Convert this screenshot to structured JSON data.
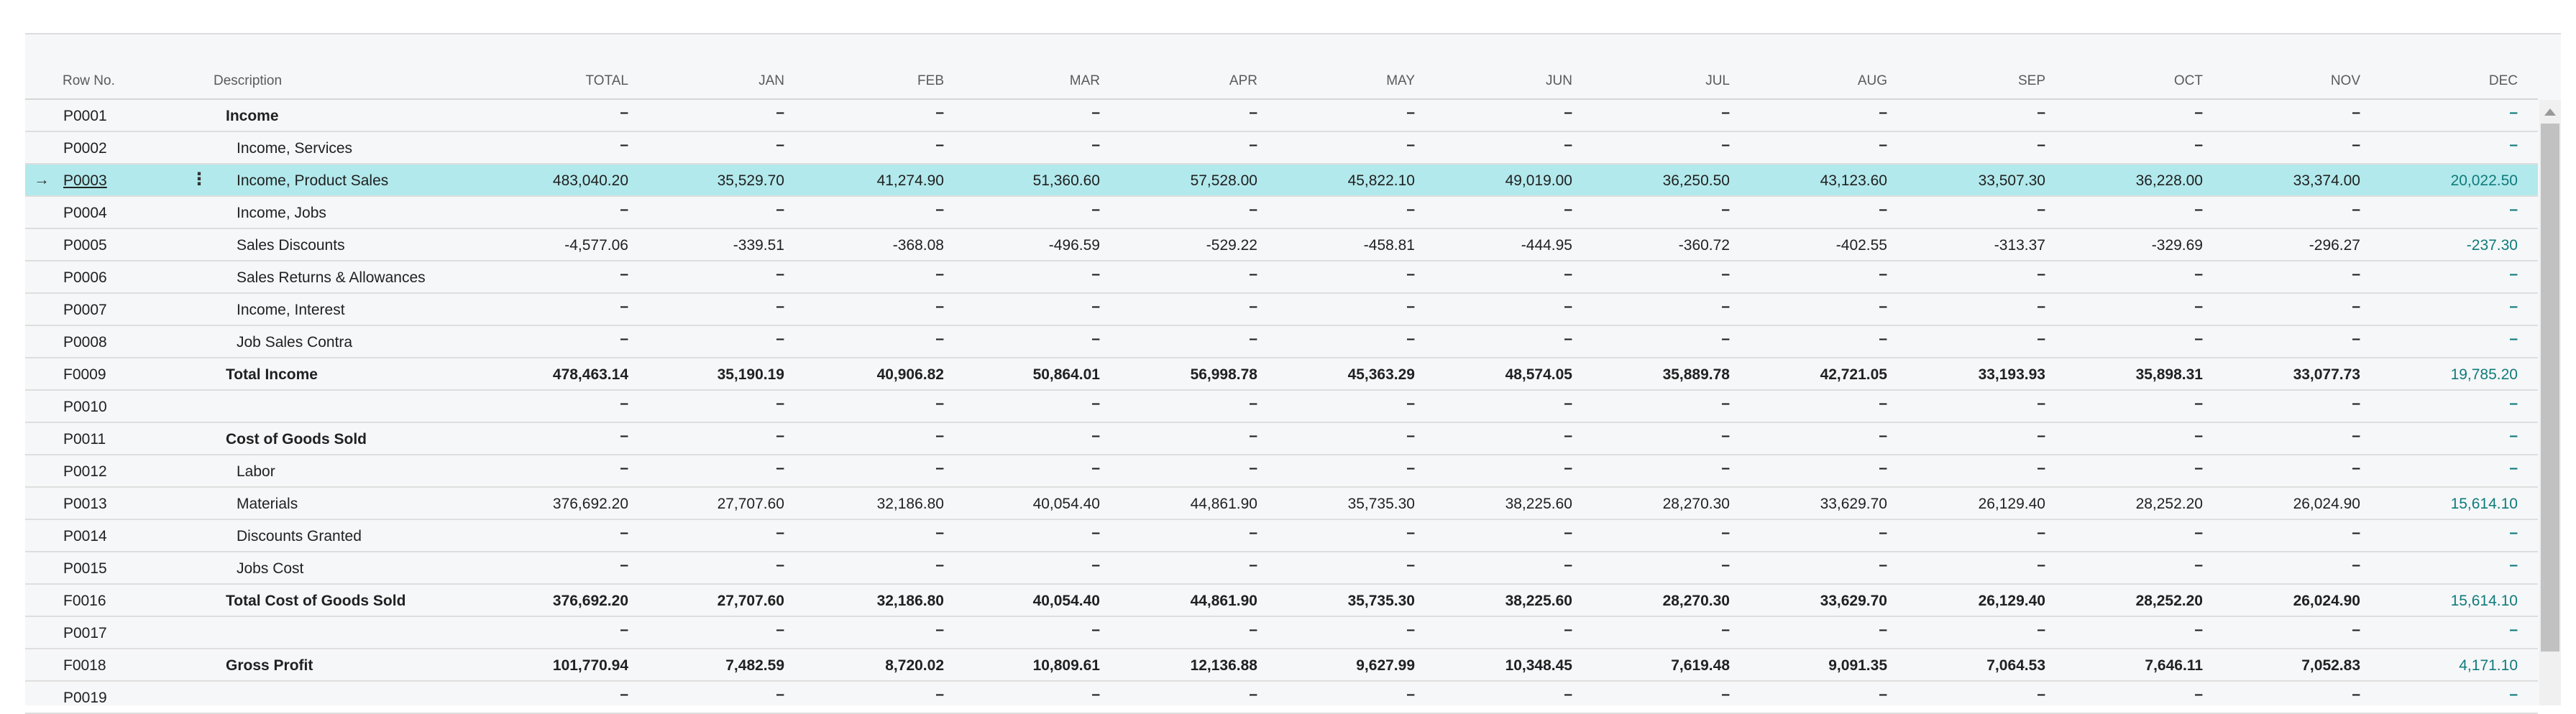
{
  "columns": {
    "row_no": "Row No.",
    "description": "Description",
    "amounts": [
      "TOTAL",
      "JAN",
      "FEB",
      "MAR",
      "APR",
      "MAY",
      "JUN",
      "JUL",
      "AUG",
      "SEP",
      "OCT",
      "NOV",
      "DEC"
    ]
  },
  "colors": {
    "selected_row": "#b2e9ec",
    "dec_column": "#0f7b7b",
    "background": "#f6f7f9"
  },
  "selected_row_index": 2,
  "rows": [
    {
      "row_no": "P0001",
      "description": "Income",
      "style": "heading",
      "values": [
        "–",
        "–",
        "–",
        "–",
        "–",
        "–",
        "–",
        "–",
        "–",
        "–",
        "–",
        "–",
        "–"
      ]
    },
    {
      "row_no": "P0002",
      "description": "Income, Services",
      "style": "indent",
      "values": [
        "–",
        "–",
        "–",
        "–",
        "–",
        "–",
        "–",
        "–",
        "–",
        "–",
        "–",
        "–",
        "–"
      ]
    },
    {
      "row_no": "P0003",
      "description": "Income, Product Sales",
      "style": "indent",
      "values": [
        "483,040.20",
        "35,529.70",
        "41,274.90",
        "51,360.60",
        "57,528.00",
        "45,822.10",
        "49,019.00",
        "36,250.50",
        "43,123.60",
        "33,507.30",
        "36,228.00",
        "33,374.00",
        "20,022.50"
      ]
    },
    {
      "row_no": "P0004",
      "description": "Income, Jobs",
      "style": "indent",
      "values": [
        "–",
        "–",
        "–",
        "–",
        "–",
        "–",
        "–",
        "–",
        "–",
        "–",
        "–",
        "–",
        "–"
      ]
    },
    {
      "row_no": "P0005",
      "description": "Sales Discounts",
      "style": "indent",
      "values": [
        "-4,577.06",
        "-339.51",
        "-368.08",
        "-496.59",
        "-529.22",
        "-458.81",
        "-444.95",
        "-360.72",
        "-402.55",
        "-313.37",
        "-329.69",
        "-296.27",
        "-237.30"
      ]
    },
    {
      "row_no": "P0006",
      "description": "Sales Returns & Allowances",
      "style": "indent",
      "values": [
        "–",
        "–",
        "–",
        "–",
        "–",
        "–",
        "–",
        "–",
        "–",
        "–",
        "–",
        "–",
        "–"
      ]
    },
    {
      "row_no": "P0007",
      "description": "Income, Interest",
      "style": "indent",
      "values": [
        "–",
        "–",
        "–",
        "–",
        "–",
        "–",
        "–",
        "–",
        "–",
        "–",
        "–",
        "–",
        "–"
      ]
    },
    {
      "row_no": "P0008",
      "description": "Job Sales Contra",
      "style": "indent",
      "values": [
        "–",
        "–",
        "–",
        "–",
        "–",
        "–",
        "–",
        "–",
        "–",
        "–",
        "–",
        "–",
        "–"
      ]
    },
    {
      "row_no": "F0009",
      "description": "Total Income",
      "style": "total",
      "values": [
        "478,463.14",
        "35,190.19",
        "40,906.82",
        "50,864.01",
        "56,998.78",
        "45,363.29",
        "48,574.05",
        "35,889.78",
        "42,721.05",
        "33,193.93",
        "35,898.31",
        "33,077.73",
        "19,785.20"
      ]
    },
    {
      "row_no": "P0010",
      "description": "",
      "style": "indent",
      "values": [
        "–",
        "–",
        "–",
        "–",
        "–",
        "–",
        "–",
        "–",
        "–",
        "–",
        "–",
        "–",
        "–"
      ]
    },
    {
      "row_no": "P0011",
      "description": "Cost of Goods Sold",
      "style": "heading",
      "values": [
        "–",
        "–",
        "–",
        "–",
        "–",
        "–",
        "–",
        "–",
        "–",
        "–",
        "–",
        "–",
        "–"
      ]
    },
    {
      "row_no": "P0012",
      "description": "Labor",
      "style": "indent",
      "values": [
        "–",
        "–",
        "–",
        "–",
        "–",
        "–",
        "–",
        "–",
        "–",
        "–",
        "–",
        "–",
        "–"
      ]
    },
    {
      "row_no": "P0013",
      "description": "Materials",
      "style": "indent",
      "values": [
        "376,692.20",
        "27,707.60",
        "32,186.80",
        "40,054.40",
        "44,861.90",
        "35,735.30",
        "38,225.60",
        "28,270.30",
        "33,629.70",
        "26,129.40",
        "28,252.20",
        "26,024.90",
        "15,614.10"
      ]
    },
    {
      "row_no": "P0014",
      "description": "Discounts Granted",
      "style": "indent",
      "values": [
        "–",
        "–",
        "–",
        "–",
        "–",
        "–",
        "–",
        "–",
        "–",
        "–",
        "–",
        "–",
        "–"
      ]
    },
    {
      "row_no": "P0015",
      "description": "Jobs Cost",
      "style": "indent",
      "values": [
        "–",
        "–",
        "–",
        "–",
        "–",
        "–",
        "–",
        "–",
        "–",
        "–",
        "–",
        "–",
        "–"
      ]
    },
    {
      "row_no": "F0016",
      "description": "Total Cost of Goods Sold",
      "style": "total",
      "values": [
        "376,692.20",
        "27,707.60",
        "32,186.80",
        "40,054.40",
        "44,861.90",
        "35,735.30",
        "38,225.60",
        "28,270.30",
        "33,629.70",
        "26,129.40",
        "28,252.20",
        "26,024.90",
        "15,614.10"
      ]
    },
    {
      "row_no": "P0017",
      "description": "",
      "style": "indent",
      "values": [
        "–",
        "–",
        "–",
        "–",
        "–",
        "–",
        "–",
        "–",
        "–",
        "–",
        "–",
        "–",
        "–"
      ]
    },
    {
      "row_no": "F0018",
      "description": "Gross Profit",
      "style": "total",
      "values": [
        "101,770.94",
        "7,482.59",
        "8,720.02",
        "10,809.61",
        "12,136.88",
        "9,627.99",
        "10,348.45",
        "7,619.48",
        "9,091.35",
        "7,064.53",
        "7,646.11",
        "7,052.83",
        "4,171.10"
      ]
    },
    {
      "row_no": "P0019",
      "description": "",
      "style": "indent",
      "values": [
        "–",
        "–",
        "–",
        "–",
        "–",
        "–",
        "–",
        "–",
        "–",
        "–",
        "–",
        "–",
        "–"
      ]
    }
  ],
  "icons": {
    "current_row": "arrow-right-icon",
    "row_menu": "more-vertical-icon",
    "scroll_up": "caret-up-icon"
  }
}
